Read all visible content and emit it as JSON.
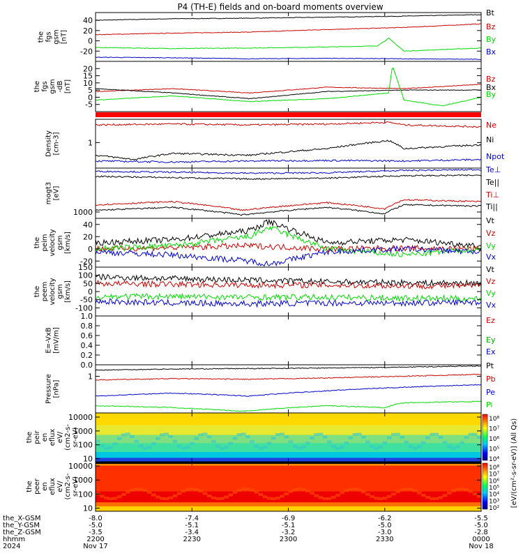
{
  "title": "P4 (TH-E) fields and on-board moments overview",
  "colors": {
    "black": "#000000",
    "red": "#cc0000",
    "green": "#00dd00",
    "blue": "#0000cc"
  },
  "chart_data": [
    {
      "type": "line",
      "id": "fgs-gsm",
      "ylabel": [
        "the",
        "fgs",
        "gsm",
        "[nT]"
      ],
      "ylim": [
        -40,
        55
      ],
      "yticks": [
        -20,
        0,
        20,
        40
      ],
      "legend": [
        "Bt",
        "Bz",
        "By",
        "Bx"
      ],
      "series": [
        {
          "name": "Bt",
          "color": "black",
          "x": [
            0,
            0.2,
            0.4,
            0.6,
            0.8,
            1.0
          ],
          "y": [
            40,
            43,
            44,
            46,
            48,
            51
          ]
        },
        {
          "name": "Bz",
          "color": "red",
          "x": [
            0,
            0.2,
            0.4,
            0.6,
            0.8,
            1.0
          ],
          "y": [
            12,
            15,
            17,
            22,
            26,
            33
          ]
        },
        {
          "name": "By",
          "color": "green",
          "x": [
            0,
            0.2,
            0.4,
            0.6,
            0.73,
            0.76,
            0.8,
            1.0
          ],
          "y": [
            -13,
            -15,
            -14,
            -12,
            -10,
            5,
            -20,
            -14
          ]
        },
        {
          "name": "Bx",
          "color": "blue",
          "x": [
            0,
            0.2,
            0.4,
            0.6,
            0.8,
            1.0
          ],
          "y": [
            -32,
            -33,
            -35,
            -34,
            -35,
            -36
          ]
        }
      ]
    },
    {
      "type": "line",
      "id": "fgs-gsm-dB",
      "ylabel": [
        "the",
        "fgs",
        "gsm",
        "-dB",
        "[nT]"
      ],
      "ylim": [
        -10,
        25
      ],
      "yticks": [
        -5,
        0,
        5,
        10,
        15,
        20
      ],
      "legend": [
        "Bz",
        "Bx",
        "By"
      ],
      "series": [
        {
          "name": "Bz",
          "color": "red",
          "x": [
            0,
            0.2,
            0.4,
            0.6,
            0.8,
            1.0
          ],
          "y": [
            4,
            6,
            3,
            7,
            6,
            9
          ]
        },
        {
          "name": "Bx",
          "color": "black",
          "x": [
            0,
            0.2,
            0.4,
            0.6,
            0.8,
            1.0
          ],
          "y": [
            6,
            3,
            -1,
            4,
            5,
            5
          ]
        },
        {
          "name": "By",
          "color": "green",
          "x": [
            0,
            0.2,
            0.4,
            0.6,
            0.76,
            0.77,
            0.8,
            0.9,
            1.0
          ],
          "y": [
            -2,
            1,
            -3,
            -1,
            3,
            22,
            -2,
            -6,
            0
          ]
        }
      ]
    },
    {
      "type": "line",
      "id": "density",
      "ylabel": [
        "Density",
        "[cm-3]"
      ],
      "ylim": [
        0.3,
        3.0
      ],
      "yticks": [
        1
      ],
      "legend": [
        "Ne",
        "Ni",
        "Npot"
      ],
      "series": [
        {
          "name": "Ne",
          "color": "red",
          "x": [
            0,
            0.2,
            0.4,
            0.6,
            0.76,
            0.8,
            1.0
          ],
          "y": [
            2.3,
            2.4,
            2.3,
            2.4,
            2.6,
            2.3,
            2.1
          ]
        },
        {
          "name": "Ni",
          "color": "black",
          "x": [
            0,
            0.1,
            0.2,
            0.4,
            0.6,
            0.76,
            0.8,
            1.0
          ],
          "y": [
            0.55,
            0.45,
            0.6,
            0.55,
            0.75,
            1.1,
            0.75,
            0.9
          ]
        },
        {
          "name": "Npot",
          "color": "blue",
          "x": [
            0,
            0.2,
            0.4,
            0.6,
            0.8,
            1.0
          ],
          "y": [
            0.42,
            0.4,
            0.42,
            0.43,
            0.42,
            0.45
          ]
        }
      ]
    },
    {
      "type": "line",
      "id": "temperature",
      "ylabel": [
        "mogt3",
        "[eV]"
      ],
      "ylim": [
        700,
        12000
      ],
      "yticks": [
        1000
      ],
      "legend": [
        "Te⊥",
        "Te||",
        "Ti⊥",
        "Ti||"
      ],
      "series": [
        {
          "name": "Te⊥",
          "color": "blue",
          "x": [
            0,
            0.2,
            0.4,
            0.6,
            0.8,
            1.0
          ],
          "y": [
            10000,
            9500,
            9000,
            9200,
            10500,
            11000
          ]
        },
        {
          "name": "Te||",
          "color": "black",
          "x": [
            0,
            0.2,
            0.4,
            0.6,
            0.8,
            1.0
          ],
          "y": [
            7500,
            7000,
            6500,
            6800,
            7800,
            8000
          ]
        },
        {
          "name": "Ti⊥",
          "color": "red",
          "x": [
            0,
            0.2,
            0.38,
            0.6,
            0.75,
            0.8,
            1.0
          ],
          "y": [
            1500,
            1800,
            1100,
            1700,
            1200,
            2000,
            1800
          ]
        },
        {
          "name": "Ti||",
          "color": "black",
          "x": [
            0,
            0.2,
            0.38,
            0.6,
            0.75,
            0.8,
            1.0
          ],
          "y": [
            1100,
            1300,
            850,
            1300,
            900,
            1500,
            1400
          ]
        }
      ]
    },
    {
      "type": "line",
      "id": "peim-velocity",
      "ylabel": [
        "the",
        "peim",
        "velocity",
        "gsm",
        "[km/s]"
      ],
      "ylim": [
        -30,
        50
      ],
      "yticks": [
        -20,
        0,
        20,
        40
      ],
      "legend": [
        "Vt",
        "Vz",
        "Vy",
        "Vx"
      ],
      "series": [
        {
          "name": "Vt",
          "color": "black",
          "x": [
            0,
            0.2,
            0.4,
            0.45,
            0.6,
            0.8,
            1.0
          ],
          "y": [
            10,
            15,
            30,
            45,
            10,
            15,
            5
          ]
        },
        {
          "name": "Vz",
          "color": "red",
          "x": [
            0,
            0.2,
            0.4,
            0.6,
            0.8,
            1.0
          ],
          "y": [
            0,
            2,
            5,
            0,
            1,
            0
          ]
        },
        {
          "name": "Vy",
          "color": "green",
          "x": [
            0,
            0.2,
            0.4,
            0.45,
            0.6,
            0.8,
            1.0
          ],
          "y": [
            0,
            5,
            20,
            35,
            0,
            -10,
            0
          ]
        },
        {
          "name": "Vx",
          "color": "blue",
          "x": [
            0,
            0.2,
            0.4,
            0.45,
            0.6,
            0.8,
            1.0
          ],
          "y": [
            -5,
            -10,
            -20,
            -25,
            -5,
            0,
            -5
          ]
        }
      ]
    },
    {
      "type": "line",
      "id": "peem-velocity",
      "ylabel": [
        "the",
        "peem",
        "velocity",
        "gsm",
        "[km/s]"
      ],
      "ylim": [
        -150,
        150
      ],
      "yticks": [
        -100,
        -50,
        0,
        50,
        100,
        150
      ],
      "legend": [
        "Vt",
        "Vz",
        "Vy",
        "Vx"
      ],
      "series": [
        {
          "name": "Vt",
          "color": "black",
          "x": [
            0,
            0.2,
            0.4,
            0.6,
            0.8,
            1.0
          ],
          "y": [
            90,
            80,
            70,
            60,
            55,
            50
          ]
        },
        {
          "name": "Vz",
          "color": "red",
          "x": [
            0,
            0.2,
            0.4,
            0.6,
            0.8,
            1.0
          ],
          "y": [
            50,
            45,
            40,
            40,
            35,
            35
          ]
        },
        {
          "name": "Vy",
          "color": "green",
          "x": [
            0,
            0.2,
            0.4,
            0.6,
            0.8,
            1.0
          ],
          "y": [
            -30,
            -30,
            -35,
            -35,
            -40,
            -45
          ]
        },
        {
          "name": "Vx",
          "color": "blue",
          "x": [
            0,
            0.2,
            0.4,
            0.6,
            0.8,
            1.0
          ],
          "y": [
            -60,
            -70,
            -75,
            -70,
            -70,
            -65
          ]
        }
      ]
    },
    {
      "type": "line",
      "id": "efield",
      "ylabel": [
        "E=-VxB",
        "[mV/m]"
      ],
      "ylim": [
        0,
        1
      ],
      "yticks": [
        0.0,
        0.2,
        0.4,
        0.6,
        0.8,
        1.0
      ],
      "legend": [
        "Ez",
        "Ey",
        "Ex"
      ],
      "series": []
    },
    {
      "type": "line",
      "id": "pressure",
      "ylabel": [
        "Pressure",
        "[nPa]"
      ],
      "ylim": [
        0.03,
        3.0
      ],
      "yticks": [
        1
      ],
      "legend": [
        "Pt",
        "Pb",
        "Pe",
        "Pi"
      ],
      "series": [
        {
          "name": "Pt",
          "color": "black",
          "x": [
            0,
            0.2,
            0.4,
            0.6,
            0.8,
            1.0
          ],
          "y": [
            1.8,
            2.0,
            2.1,
            2.2,
            2.4,
            2.7
          ]
        },
        {
          "name": "Pb",
          "color": "red",
          "x": [
            0,
            0.2,
            0.4,
            0.6,
            0.8,
            1.0
          ],
          "y": [
            0.7,
            0.8,
            0.75,
            0.85,
            1.0,
            1.2
          ]
        },
        {
          "name": "Pe",
          "color": "blue",
          "x": [
            0,
            0.2,
            0.4,
            0.6,
            0.8,
            1.0
          ],
          "y": [
            0.15,
            0.2,
            0.15,
            0.25,
            0.35,
            0.45
          ]
        },
        {
          "name": "Pi",
          "color": "green",
          "x": [
            0,
            0.2,
            0.38,
            0.6,
            0.75,
            0.8,
            1.0
          ],
          "y": [
            0.06,
            0.05,
            0.035,
            0.06,
            0.05,
            0.08,
            0.09
          ]
        }
      ]
    },
    {
      "type": "heatmap",
      "id": "peir",
      "ylabel": [
        "the",
        "peir",
        "en",
        "eflux",
        "eV/",
        "(cm2-s-",
        "sr-eV)"
      ],
      "ylim": [
        6,
        20000
      ],
      "yticks": [
        10,
        100,
        1000,
        10000
      ]
    },
    {
      "type": "heatmap",
      "id": "peer",
      "ylabel": [
        "the",
        "peer",
        "en",
        "eflux",
        "eV/",
        "(cm2-s-",
        "sr-eV)"
      ],
      "ylim": [
        6,
        20000
      ],
      "yticks": [
        10,
        100,
        1000,
        10000
      ]
    }
  ],
  "colorbars": [
    {
      "id": "cb-ion",
      "ticks": [
        "10⁸",
        "10⁷",
        "10⁶",
        "10⁵",
        "10⁴"
      ]
    },
    {
      "id": "cb-elec",
      "ticks": [
        "10⁸",
        "10⁷",
        "10⁶",
        "10⁵",
        "10⁴",
        "10³",
        "10²"
      ]
    }
  ],
  "colorbar_label": "[eV/(cm²-s-sr-eV)] (All Qs)",
  "x_axis": {
    "ticks": [
      "2200",
      "2230",
      "2300",
      "2330",
      "0000"
    ],
    "rows": [
      {
        "label": "the_X-GSM",
        "values": [
          "-8.0",
          "-7.4",
          "-6.9",
          "-6.2",
          "-5.5"
        ]
      },
      {
        "label": "the_Y-GSM",
        "values": [
          "-5.0",
          "-5.1",
          "-5.1",
          "-5.0",
          "-5.0"
        ]
      },
      {
        "label": "the_Z-GSM",
        "values": [
          "-3.5",
          "-3.4",
          "-3.2",
          "-3.0",
          "-2.8"
        ]
      },
      {
        "label": "hhmm",
        "values": [
          "2200",
          "2230",
          "2300",
          "2330",
          "0000"
        ]
      },
      {
        "label": "2024",
        "values": [
          "Nov 17",
          "",
          "",
          "",
          "Nov 18"
        ]
      }
    ]
  }
}
